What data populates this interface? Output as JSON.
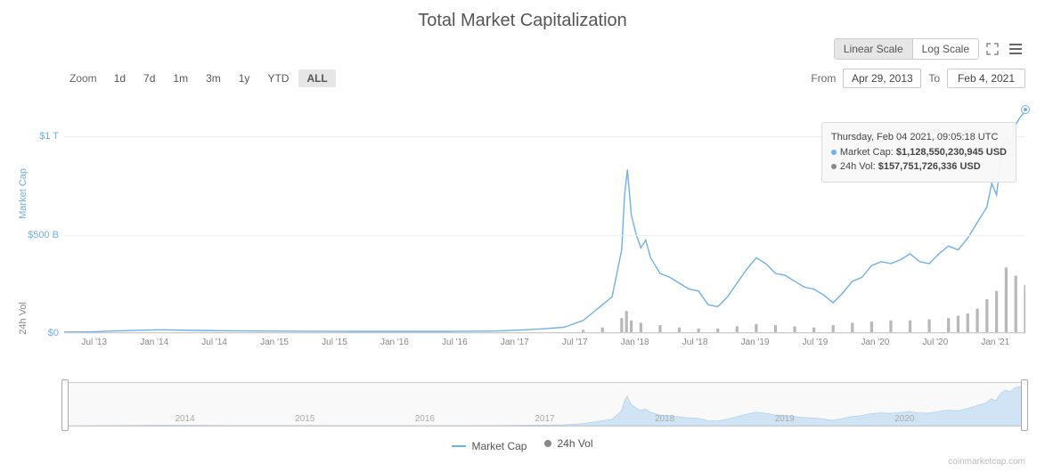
{
  "title": "Total Market Capitalization",
  "scale": {
    "linear": "Linear Scale",
    "log": "Log Scale",
    "active": "linear"
  },
  "zoom": {
    "label": "Zoom",
    "options": [
      "1d",
      "7d",
      "1m",
      "3m",
      "1y",
      "YTD",
      "ALL"
    ],
    "active": "ALL"
  },
  "range": {
    "from_label": "From",
    "from": "Apr 29, 2013",
    "to_label": "To",
    "to": "Feb 4, 2021"
  },
  "y_axis": {
    "label": "Market Cap",
    "ticks": [
      {
        "v": 0,
        "label": "$0"
      },
      {
        "v": 500,
        "label": "$500 B"
      },
      {
        "v": 1000,
        "label": "$1 T"
      }
    ],
    "max": 1200,
    "color": "#6fb0e6"
  },
  "vol_label": "24h Vol",
  "x_ticks": [
    "Jul '13",
    "Jan '14",
    "Jul '14",
    "Jan '15",
    "Jul '15",
    "Jan '16",
    "Jul '16",
    "Jan '17",
    "Jul '17",
    "Jan '18",
    "Jul '18",
    "Jan '19",
    "Jul '19",
    "Jan '20",
    "Jul '20",
    "Jan '21"
  ],
  "series": {
    "marketcap": {
      "color": "#6fb0e6",
      "stroke_width": 1.4,
      "points": [
        [
          0,
          1
        ],
        [
          3,
          2
        ],
        [
          5,
          6
        ],
        [
          8,
          10
        ],
        [
          10,
          12
        ],
        [
          15,
          8
        ],
        [
          20,
          6
        ],
        [
          25,
          5
        ],
        [
          30,
          4
        ],
        [
          35,
          4
        ],
        [
          40,
          4
        ],
        [
          45,
          6
        ],
        [
          48,
          12
        ],
        [
          50,
          18
        ],
        [
          52,
          25
        ],
        [
          54,
          60
        ],
        [
          55,
          100
        ],
        [
          56,
          140
        ],
        [
          57,
          180
        ],
        [
          58,
          420
        ],
        [
          58.3,
          700
        ],
        [
          58.6,
          830
        ],
        [
          59,
          600
        ],
        [
          59.5,
          500
        ],
        [
          60,
          430
        ],
        [
          60.5,
          470
        ],
        [
          61,
          380
        ],
        [
          62,
          300
        ],
        [
          63,
          280
        ],
        [
          64,
          250
        ],
        [
          65,
          220
        ],
        [
          66,
          210
        ],
        [
          67,
          140
        ],
        [
          68,
          130
        ],
        [
          69,
          180
        ],
        [
          70,
          250
        ],
        [
          71,
          320
        ],
        [
          72,
          380
        ],
        [
          73,
          350
        ],
        [
          74,
          300
        ],
        [
          75,
          290
        ],
        [
          76,
          260
        ],
        [
          77,
          230
        ],
        [
          78,
          220
        ],
        [
          79,
          190
        ],
        [
          80,
          150
        ],
        [
          81,
          200
        ],
        [
          82,
          260
        ],
        [
          83,
          280
        ],
        [
          84,
          340
        ],
        [
          85,
          360
        ],
        [
          86,
          350
        ],
        [
          87,
          370
        ],
        [
          88,
          400
        ],
        [
          89,
          360
        ],
        [
          90,
          350
        ],
        [
          91,
          400
        ],
        [
          92,
          440
        ],
        [
          93,
          420
        ],
        [
          94,
          480
        ],
        [
          95,
          560
        ],
        [
          96,
          640
        ],
        [
          96.5,
          760
        ],
        [
          97,
          700
        ],
        [
          97.5,
          900
        ],
        [
          98,
          1000
        ],
        [
          98.5,
          950
        ],
        [
          99,
          1060
        ],
        [
          99.5,
          1100
        ],
        [
          100,
          1128
        ]
      ]
    },
    "volume": {
      "color": "#888",
      "bars": [
        [
          54,
          2
        ],
        [
          56,
          4
        ],
        [
          58,
          12
        ],
        [
          58.5,
          18
        ],
        [
          59,
          10
        ],
        [
          60,
          8
        ],
        [
          62,
          6
        ],
        [
          64,
          4
        ],
        [
          66,
          3
        ],
        [
          68,
          3
        ],
        [
          70,
          5
        ],
        [
          72,
          7
        ],
        [
          74,
          6
        ],
        [
          76,
          5
        ],
        [
          78,
          4
        ],
        [
          80,
          6
        ],
        [
          82,
          8
        ],
        [
          84,
          9
        ],
        [
          86,
          10
        ],
        [
          88,
          10
        ],
        [
          90,
          11
        ],
        [
          92,
          12
        ],
        [
          93,
          14
        ],
        [
          94,
          16
        ],
        [
          95,
          20
        ],
        [
          96,
          28
        ],
        [
          97,
          35
        ],
        [
          98,
          55
        ],
        [
          99,
          48
        ],
        [
          100,
          40
        ]
      ],
      "max": 200
    }
  },
  "tooltip": {
    "date": "Thursday, Feb 04 2021, 09:05:18 UTC",
    "rows": [
      {
        "color": "#6fb0e6",
        "label": "Market Cap:",
        "value": "$1,128,550,230,945 USD"
      },
      {
        "color": "#888",
        "label": "24h Vol:",
        "value": "$157,751,726,336 USD"
      }
    ]
  },
  "navigator": {
    "years": [
      "2014",
      "2015",
      "2016",
      "2017",
      "2018",
      "2019",
      "2020"
    ]
  },
  "legend": [
    {
      "type": "line",
      "color": "#6fb0e6",
      "label": "Market Cap"
    },
    {
      "type": "dot",
      "color": "#888",
      "label": "24h Vol"
    }
  ],
  "credit": "coinmarketcap.com"
}
